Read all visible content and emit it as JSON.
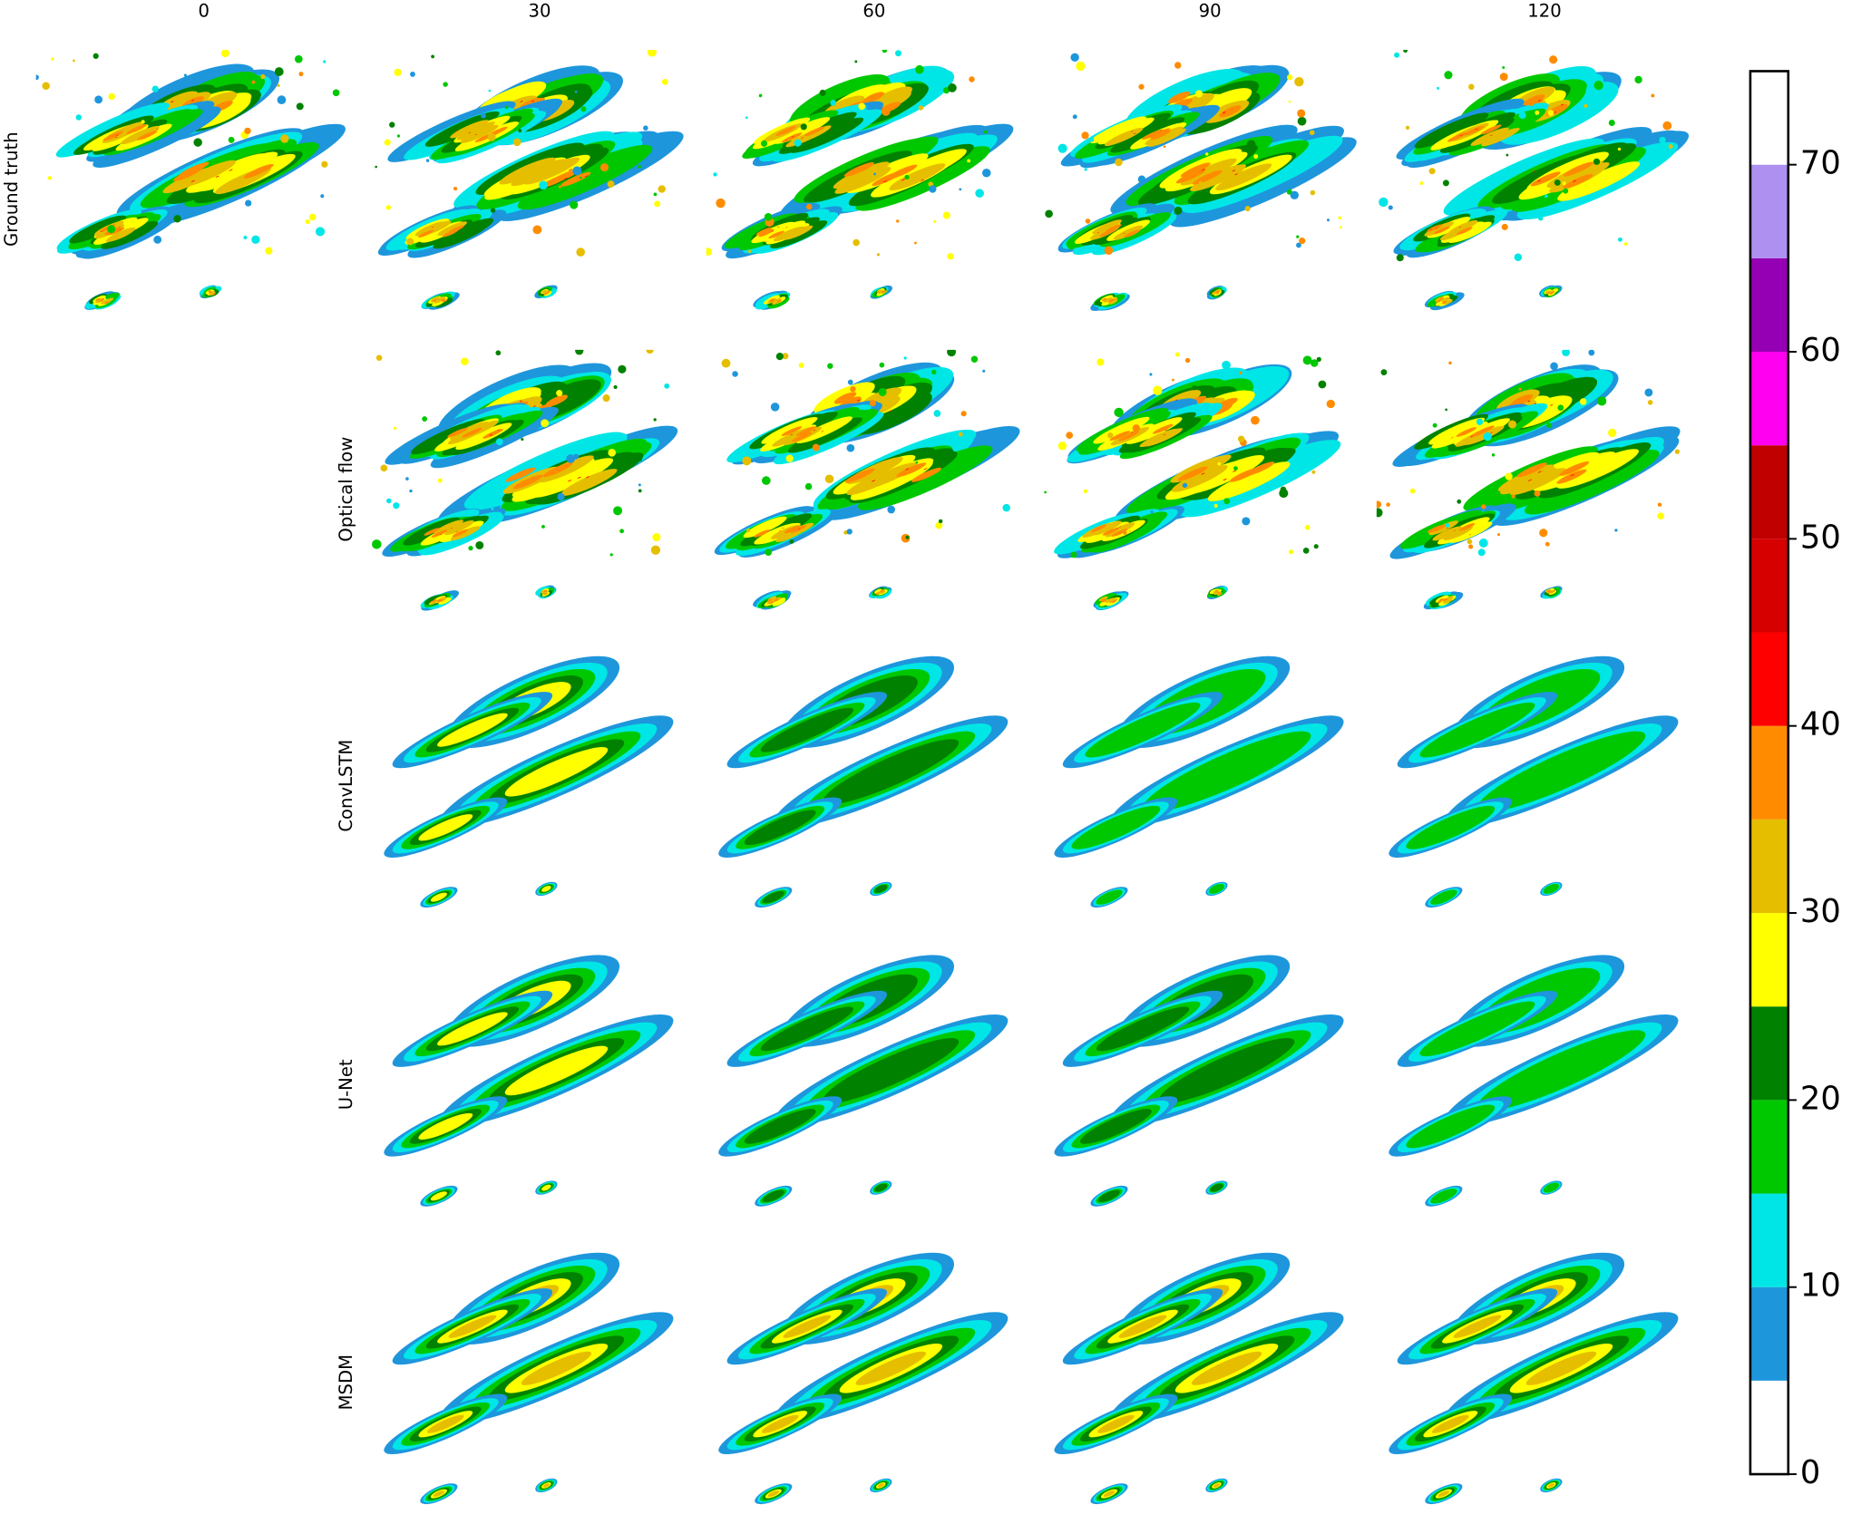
{
  "chart_data": {
    "type": "image_grid",
    "columns": [
      0,
      30,
      60,
      90,
      120
    ],
    "rows": [
      "Ground truth",
      "Optical flow",
      "ConvLSTM",
      "U-Net",
      "MSDM"
    ],
    "colorbar": {
      "lim": [
        0,
        75
      ],
      "ticks": [
        0,
        10,
        20,
        30,
        40,
        50,
        60,
        70
      ],
      "bounds": [
        0,
        5,
        10,
        15,
        20,
        25,
        30,
        35,
        40,
        45,
        50,
        55,
        60,
        65,
        70,
        75
      ],
      "colors": [
        "#ffffff",
        "#1e96dc",
        "#00e6e6",
        "#00c800",
        "#008200",
        "#ffff00",
        "#e6be00",
        "#ff8c00",
        "#ff0000",
        "#d70000",
        "#c00000",
        "#ff00f0",
        "#9600b4",
        "#ad90f0",
        "#ffffff"
      ]
    }
  }
}
